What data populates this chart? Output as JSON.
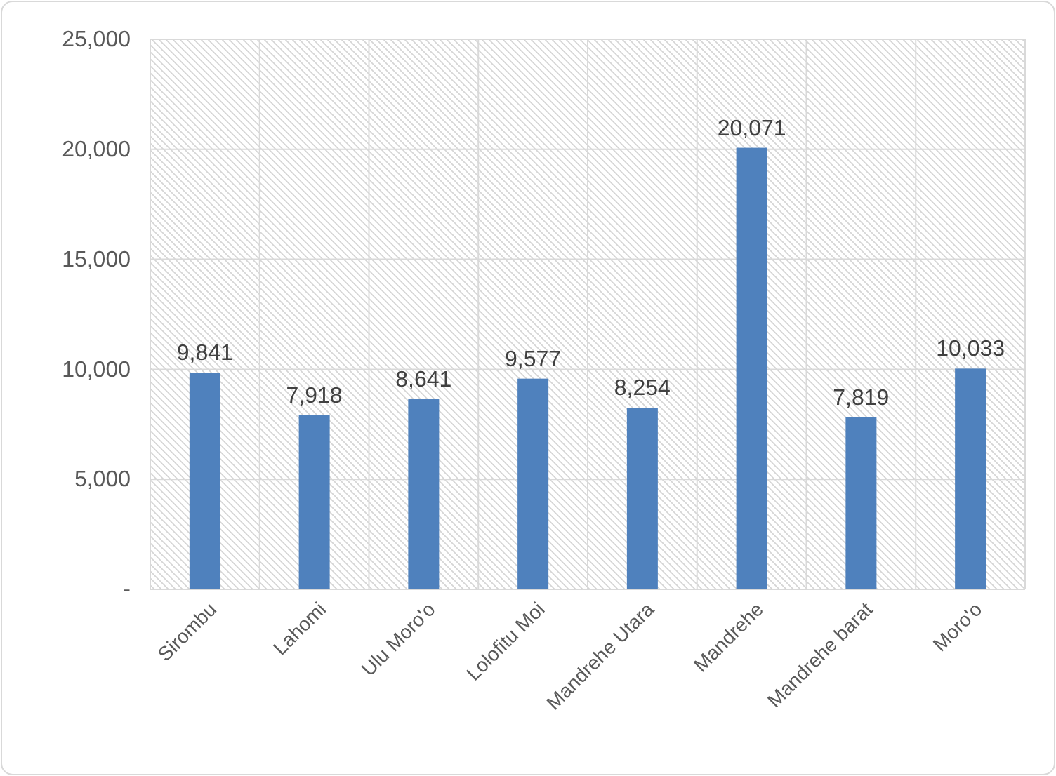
{
  "chart_data": {
    "type": "bar",
    "categories": [
      "Sirombu",
      "Lahomi",
      "Ulu Moro'o",
      "Lolofitu Moi",
      "Mandrehe Utara",
      "Mandrehe",
      "Mandrehe barat",
      "Moro'o"
    ],
    "values": [
      9841,
      7918,
      8641,
      9577,
      8254,
      20071,
      7819,
      10033
    ],
    "value_labels": [
      "9,841",
      "7,918",
      "8,641",
      "9,577",
      "8,254",
      "20,071",
      "7,819",
      "10,033"
    ],
    "color": "#4f81bd",
    "ylim": [
      0,
      25000
    ],
    "yticks": [
      {
        "value": 0,
        "label": "-"
      },
      {
        "value": 5000,
        "label": "5,000"
      },
      {
        "value": 10000,
        "label": "10,000"
      },
      {
        "value": 15000,
        "label": "15,000"
      },
      {
        "value": 20000,
        "label": "20,000"
      },
      {
        "value": 25000,
        "label": "25,000"
      }
    ],
    "grid": true
  }
}
